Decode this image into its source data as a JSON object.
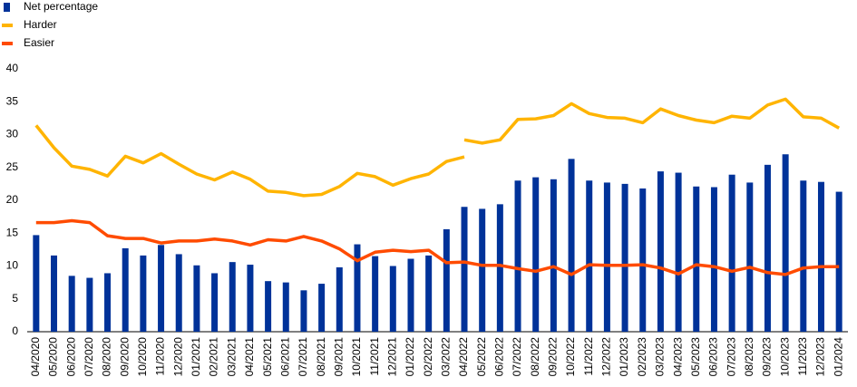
{
  "chart_data": {
    "type": "bar-line",
    "categories": [
      "04/2020",
      "05/2020",
      "06/2020",
      "07/2020",
      "08/2020",
      "09/2020",
      "10/2020",
      "11/2020",
      "12/2020",
      "01/2021",
      "02/2021",
      "03/2021",
      "04/2021",
      "05/2021",
      "06/2021",
      "07/2021",
      "08/2021",
      "09/2021",
      "10/2021",
      "11/2021",
      "12/2021",
      "01/2022",
      "02/2022",
      "03/2022",
      "04/2022",
      "05/2022",
      "06/2022",
      "07/2022",
      "08/2022",
      "09/2022",
      "10/2022",
      "11/2022",
      "12/2022",
      "01/2023",
      "02/2023",
      "03/2023",
      "04/2023",
      "05/2023",
      "06/2023",
      "07/2023",
      "08/2023",
      "09/2023",
      "10/2023",
      "11/2023",
      "12/2023",
      "01/2024"
    ],
    "series": [
      {
        "name": "Net percentage",
        "kind": "bar",
        "color": "#003299",
        "values": [
          14.7,
          11.6,
          8.5,
          8.2,
          8.9,
          12.7,
          11.6,
          13.2,
          11.8,
          10.1,
          8.9,
          10.6,
          10.2,
          7.7,
          7.5,
          6.3,
          7.3,
          9.8,
          13.3,
          11.5,
          10,
          11.1,
          11.6,
          15.6,
          19.0,
          18.7,
          19.4,
          23,
          23.5,
          23.2,
          26.3,
          23,
          22.7,
          22.5,
          21.8,
          24.4,
          24.2,
          22.1,
          22,
          23.9,
          22.7,
          25.4,
          27,
          23,
          22.8,
          21.3
        ]
      },
      {
        "name": "Harder",
        "kind": "line",
        "color": "#ffb400",
        "values": [
          31.4,
          28.0,
          25.2,
          24.7,
          23.7,
          26.7,
          25.7,
          27.1,
          25.5,
          24.0,
          23.1,
          24.3,
          23.2,
          21.4,
          21.2,
          20.7,
          20.9,
          22.1,
          24.1,
          23.6,
          22.3,
          23.3,
          24.0,
          25.9,
          26.6,
          null,
          null,
          null,
          null,
          null,
          null,
          null,
          null,
          null,
          null,
          null,
          null,
          null,
          null,
          null,
          null,
          null,
          null,
          null,
          null,
          null
        ]
      },
      {
        "name": "Harder",
        "kind": "line",
        "color": "#ffb400",
        "values": [
          null,
          null,
          null,
          null,
          null,
          null,
          null,
          null,
          null,
          null,
          null,
          null,
          null,
          null,
          null,
          null,
          null,
          null,
          null,
          null,
          null,
          null,
          null,
          null,
          29.2,
          28.7,
          29.2,
          32.3,
          32.4,
          32.9,
          34.7,
          33.2,
          32.6,
          32.5,
          31.8,
          33.9,
          32.9,
          32.2,
          31.8,
          32.8,
          32.5,
          34.5,
          35.4,
          32.7,
          32.5,
          31.0
        ]
      },
      {
        "name": "Easier",
        "kind": "line",
        "color": "#ff4b00",
        "values": [
          16.6,
          16.6,
          16.9,
          16.6,
          14.6,
          14.2,
          14.2,
          13.5,
          13.8,
          13.8,
          14.1,
          13.8,
          13.2,
          14.0,
          13.8,
          14.5,
          13.8,
          12.6,
          10.8,
          12.1,
          12.4,
          12.2,
          12.4,
          10.5,
          10.6,
          10.1,
          10.1,
          9.6,
          9.2,
          9.9,
          8.7,
          10.2,
          10.1,
          10.1,
          10.2,
          9.7,
          8.8,
          10.2,
          9.9,
          9.2,
          9.8,
          9.0,
          8.7,
          9.7,
          9.9,
          9.9
        ]
      }
    ],
    "ylim": [
      0,
      40
    ],
    "yticks": [
      0,
      5,
      10,
      15,
      20,
      25,
      30,
      35,
      40
    ],
    "grid": false
  }
}
